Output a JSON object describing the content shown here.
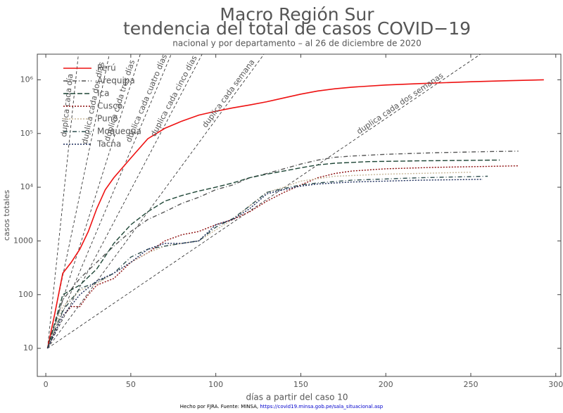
{
  "chart_data": {
    "type": "line",
    "title": "Macro Región Sur",
    "subtitle": "tendencia del total de casos COVID−19",
    "caption": "nacional y por departamento – al 26 de diciembre de 2020",
    "xlabel": "días a partir del caso 10",
    "ylabel": "casos totales",
    "source": "Hecho por FJRA. Fuente: MINSA,",
    "source_url": "https://covid19.minsa.gob.pe/sala_situacional.asp",
    "log_y": true,
    "legend": "upper left",
    "xlim": [
      -5,
      303
    ],
    "ylim": [
      3,
      3000000
    ],
    "xticks": [
      0,
      50,
      100,
      150,
      200,
      250,
      300
    ],
    "yticks": [
      10,
      100,
      1000,
      {
        "value": 10000,
        "label": "10⁴"
      },
      {
        "value": 100000,
        "label": "10⁵"
      },
      {
        "value": 1000000,
        "label": "10⁶"
      }
    ],
    "reference_origin": [
      1,
      10
    ],
    "reference_lines": [
      {
        "label": "duplica cada día",
        "doubling_days": 1
      },
      {
        "label": "duplica cada dos días",
        "doubling_days": 2
      },
      {
        "label": "duplica cada tres días",
        "doubling_days": 3
      },
      {
        "label": "duplica cada cuatro días",
        "doubling_days": 4
      },
      {
        "label": "duplica cada cinco días",
        "doubling_days": 5
      },
      {
        "label": "duplica cada semana",
        "doubling_days": 7
      },
      {
        "label": "duplica cada dos semanas",
        "doubling_days": 14
      }
    ],
    "series": [
      {
        "name": "Perú",
        "color": "#ee1111",
        "dash": "",
        "x": [
          1,
          5,
          10,
          15,
          20,
          25,
          30,
          35,
          40,
          50,
          60,
          70,
          80,
          90,
          100,
          110,
          120,
          130,
          140,
          150,
          160,
          170,
          180,
          200,
          220,
          250,
          270,
          293
        ],
        "values": [
          10,
          40,
          250,
          400,
          700,
          1500,
          4000,
          9000,
          15000,
          35000,
          80000,
          125000,
          170000,
          220000,
          260000,
          300000,
          340000,
          390000,
          460000,
          540000,
          620000,
          680000,
          730000,
          800000,
          850000,
          920000,
          960000,
          1000000
        ]
      },
      {
        "name": "Arequipa",
        "color": "#555555",
        "dash": "6 3 1 3",
        "x": [
          1,
          10,
          20,
          30,
          40,
          50,
          60,
          70,
          80,
          90,
          100,
          110,
          120,
          130,
          140,
          150,
          160,
          170,
          180,
          200,
          230,
          260,
          278
        ],
        "values": [
          10,
          80,
          200,
          400,
          800,
          1500,
          2500,
          3500,
          5000,
          6500,
          9000,
          11000,
          15000,
          18000,
          22000,
          27000,
          32000,
          36000,
          38000,
          41000,
          44000,
          46000,
          47000
        ]
      },
      {
        "name": "Ica",
        "color": "#1d4535",
        "dash": "7 3",
        "x": [
          1,
          10,
          20,
          30,
          40,
          50,
          60,
          70,
          80,
          90,
          100,
          110,
          120,
          130,
          140,
          150,
          160,
          170,
          190,
          220,
          267
        ],
        "values": [
          10,
          100,
          150,
          300,
          900,
          2000,
          3500,
          5500,
          7000,
          8500,
          10000,
          12000,
          15000,
          17500,
          20000,
          23000,
          26000,
          28000,
          30000,
          31000,
          32000
        ]
      },
      {
        "name": "Cusco",
        "color": "#8b0a0a",
        "dash": "2 2",
        "x": [
          1,
          10,
          15,
          20,
          25,
          30,
          40,
          50,
          60,
          70,
          80,
          90,
          100,
          110,
          120,
          130,
          140,
          150,
          160,
          170,
          180,
          200,
          230,
          278
        ],
        "values": [
          10,
          40,
          60,
          60,
          100,
          150,
          200,
          400,
          600,
          1000,
          1300,
          1500,
          2000,
          2500,
          3500,
          5500,
          8000,
          11000,
          15000,
          18000,
          20000,
          22000,
          23500,
          25000
        ]
      },
      {
        "name": "Puno",
        "color": "#c8b89a",
        "dash": "2 2",
        "x": [
          1,
          10,
          20,
          30,
          40,
          50,
          60,
          70,
          80,
          90,
          100,
          110,
          120,
          130,
          140,
          150,
          170,
          200,
          250
        ],
        "values": [
          10,
          60,
          120,
          160,
          250,
          400,
          600,
          800,
          900,
          1000,
          1600,
          2500,
          4500,
          8000,
          10000,
          13000,
          16000,
          17500,
          19000
        ]
      },
      {
        "name": "Moquegua",
        "color": "#2f4f4f",
        "dash": "6 3 1 3",
        "x": [
          1,
          10,
          20,
          30,
          40,
          50,
          60,
          70,
          80,
          90,
          100,
          110,
          120,
          130,
          140,
          150,
          160,
          180,
          220,
          260
        ],
        "values": [
          10,
          50,
          130,
          170,
          250,
          500,
          700,
          800,
          900,
          1000,
          1800,
          2600,
          4500,
          8000,
          9500,
          11000,
          12000,
          13500,
          15000,
          16000
        ]
      },
      {
        "name": "Tacna",
        "color": "#1a2a5a",
        "dash": "2 2",
        "x": [
          1,
          10,
          20,
          30,
          40,
          50,
          60,
          70,
          80,
          90,
          100,
          110,
          120,
          130,
          140,
          150,
          160,
          180,
          220,
          257
        ],
        "values": [
          10,
          40,
          100,
          180,
          250,
          400,
          700,
          900,
          900,
          1000,
          2000,
          2500,
          4000,
          7500,
          9000,
          10500,
          11500,
          12500,
          13500,
          14000
        ]
      }
    ]
  }
}
